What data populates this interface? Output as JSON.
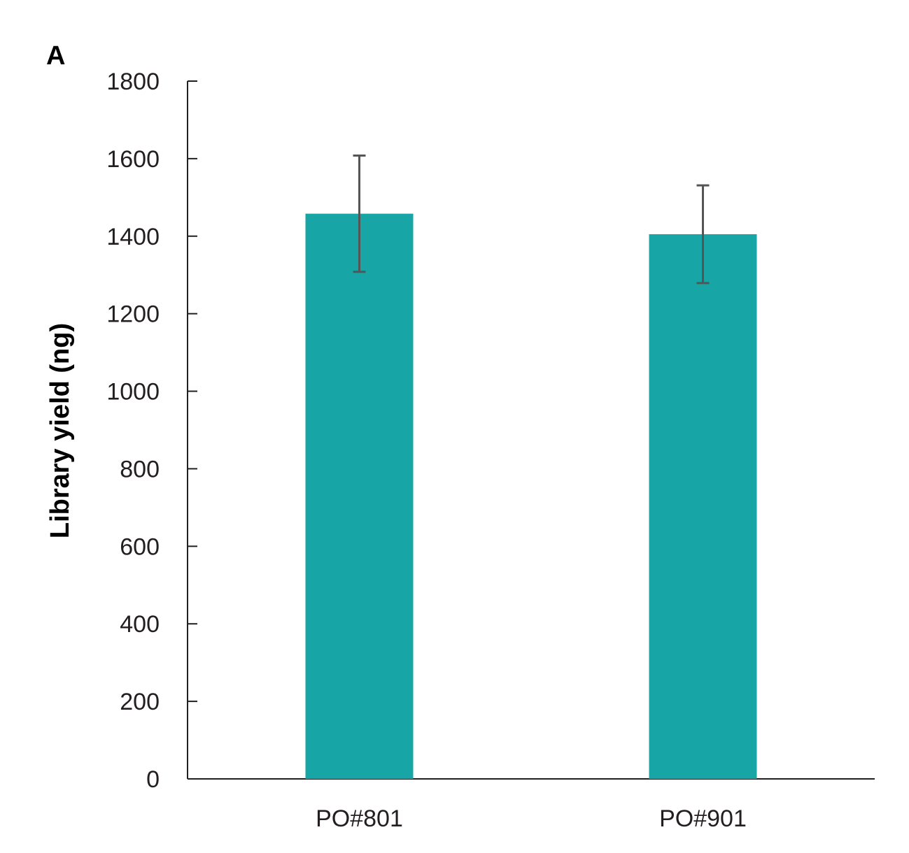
{
  "panel_label": "A",
  "colors": {
    "bar": "#17a6a5",
    "axis": "#231f20",
    "error_bar": "#555555"
  },
  "chart_data": {
    "type": "bar",
    "categories": [
      "PO#801",
      "PO#901"
    ],
    "values": [
      1458,
      1405
    ],
    "errors": [
      150,
      126
    ],
    "ylabel": "Library yield (ng)",
    "xlabel": "",
    "ylim": [
      0,
      1800
    ],
    "yticks": [
      0,
      200,
      400,
      600,
      800,
      1000,
      1200,
      1400,
      1600,
      1800
    ],
    "grid": false,
    "legend": "none"
  }
}
